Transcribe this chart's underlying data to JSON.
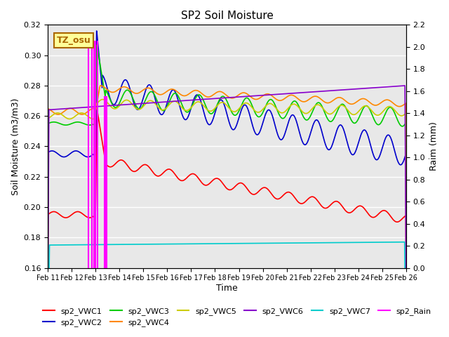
{
  "title": "SP2 Soil Moisture",
  "xlabel": "Time",
  "ylabel_left": "Soil Moisture (m3/m3)",
  "ylabel_right": "Raim (mm)",
  "ylim_left": [
    0.16,
    0.32
  ],
  "ylim_right": [
    0.0,
    2.2
  ],
  "yticks_left": [
    0.16,
    0.18,
    0.2,
    0.22,
    0.24,
    0.26,
    0.28,
    0.3,
    0.32
  ],
  "yticks_right": [
    0.0,
    0.2,
    0.4,
    0.6,
    0.8,
    1.0,
    1.2,
    1.4,
    1.6,
    1.8,
    2.0,
    2.2
  ],
  "xtick_labels": [
    "Feb 11",
    "Feb 12",
    "Feb 13",
    "Feb 14",
    "Feb 15",
    "Feb 16",
    "Feb 17",
    "Feb 18",
    "Feb 19",
    "Feb 20",
    "Feb 21",
    "Feb 22",
    "Feb 23",
    "Feb 24",
    "Feb 25",
    "Feb 26"
  ],
  "label_box_text": "TZ_osu",
  "label_box_color": "#FFFF99",
  "label_box_edge": "#AA6600",
  "background_color": "#E8E8E8",
  "grid_color": "#FFFFFF",
  "series": {
    "sp2_VWC1": {
      "color": "#FF0000",
      "lw": 1.2
    },
    "sp2_VWC2": {
      "color": "#0000CC",
      "lw": 1.2
    },
    "sp2_VWC3": {
      "color": "#00CC00",
      "lw": 1.2
    },
    "sp2_VWC4": {
      "color": "#FF8800",
      "lw": 1.2
    },
    "sp2_VWC5": {
      "color": "#CCCC00",
      "lw": 1.2
    },
    "sp2_VWC6": {
      "color": "#8800CC",
      "lw": 1.2
    },
    "sp2_VWC7": {
      "color": "#00CCCC",
      "lw": 1.2
    },
    "sp2_Rain": {
      "color": "#FF00FF",
      "lw": 1.5
    }
  }
}
